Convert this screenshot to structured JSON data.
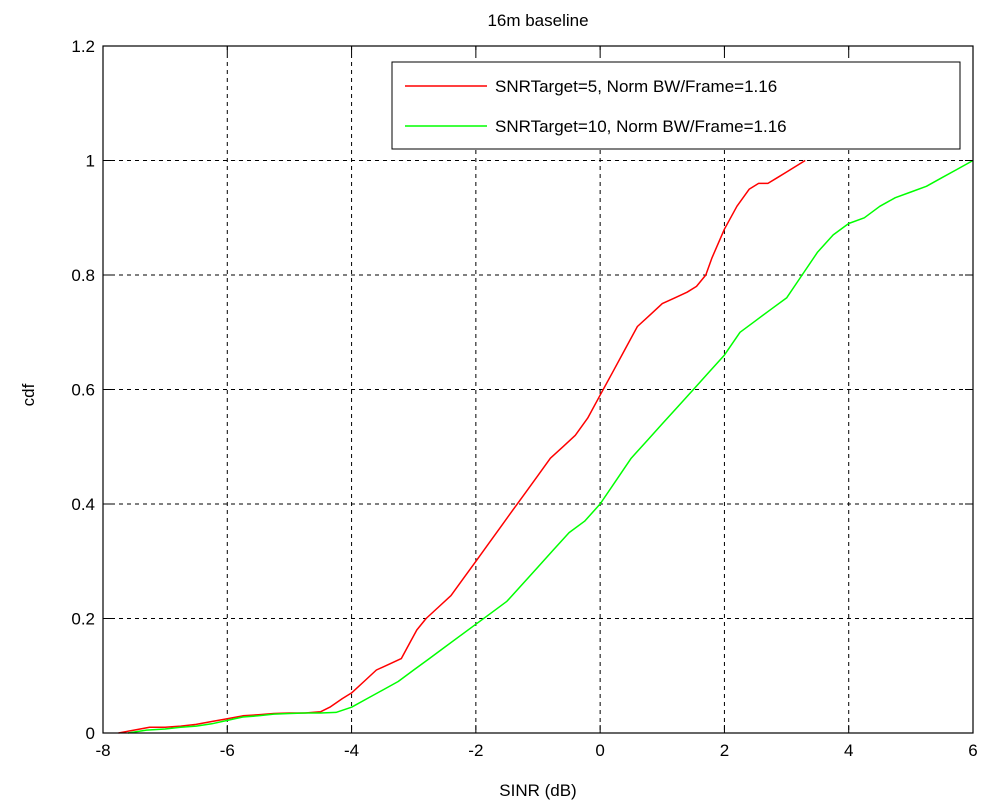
{
  "chart_data": {
    "type": "line",
    "title": "16m baseline",
    "xlabel": "SINR (dB)",
    "ylabel": "cdf",
    "xlim": [
      -8,
      6
    ],
    "ylim": [
      0,
      1.2
    ],
    "xticks": [
      -8,
      -6,
      -4,
      -2,
      0,
      2,
      4,
      6
    ],
    "yticks": [
      0,
      0.2,
      0.4,
      0.6,
      0.8,
      1,
      1.2
    ],
    "xtick_labels": [
      "-8",
      "-6",
      "-4",
      "-2",
      "0",
      "2",
      "4",
      "6"
    ],
    "ytick_labels": [
      "0",
      "0.2",
      "0.4",
      "0.6",
      "0.8",
      "1",
      "1.2"
    ],
    "grid": true,
    "legend_position": "top-right",
    "series": [
      {
        "name": "SNRTarget=5, Norm BW/Frame=1.16",
        "color": "#ff0000",
        "x": [
          -7.75,
          -7.5,
          -7.25,
          -7.0,
          -6.75,
          -6.5,
          -6.25,
          -6.0,
          -5.75,
          -5.5,
          -5.25,
          -5.0,
          -4.75,
          -4.5,
          -4.35,
          -4.15,
          -4.0,
          -3.8,
          -3.6,
          -3.4,
          -3.2,
          -3.05,
          -2.95,
          -2.8,
          -2.6,
          -2.4,
          -2.2,
          -2.0,
          -1.8,
          -1.6,
          -1.4,
          -1.2,
          -1.0,
          -0.8,
          -0.6,
          -0.4,
          -0.2,
          0.0,
          0.2,
          0.4,
          0.6,
          0.8,
          1.0,
          1.2,
          1.4,
          1.55,
          1.7,
          1.8,
          2.0,
          2.2,
          2.4,
          2.55,
          2.7,
          2.85,
          3.0,
          3.15,
          3.3
        ],
        "y": [
          0.0,
          0.005,
          0.01,
          0.01,
          0.012,
          0.015,
          0.02,
          0.025,
          0.03,
          0.032,
          0.034,
          0.035,
          0.035,
          0.037,
          0.045,
          0.06,
          0.07,
          0.09,
          0.11,
          0.12,
          0.13,
          0.16,
          0.18,
          0.2,
          0.22,
          0.24,
          0.27,
          0.3,
          0.33,
          0.36,
          0.39,
          0.42,
          0.45,
          0.48,
          0.5,
          0.52,
          0.55,
          0.59,
          0.63,
          0.67,
          0.71,
          0.73,
          0.75,
          0.76,
          0.77,
          0.78,
          0.8,
          0.83,
          0.88,
          0.92,
          0.95,
          0.96,
          0.96,
          0.97,
          0.98,
          0.99,
          1.0
        ]
      },
      {
        "name": "SNRTarget=10, Norm BW/Frame=1.16",
        "color": "#00ff00",
        "x": [
          -7.6,
          -7.3,
          -7.0,
          -6.75,
          -6.5,
          -6.25,
          -6.0,
          -5.75,
          -5.5,
          -5.25,
          -5.0,
          -4.75,
          -4.5,
          -4.25,
          -4.0,
          -3.75,
          -3.5,
          -3.25,
          -3.0,
          -2.75,
          -2.5,
          -2.25,
          -2.0,
          -1.75,
          -1.5,
          -1.25,
          -1.0,
          -0.75,
          -0.5,
          -0.25,
          0.0,
          0.25,
          0.5,
          0.75,
          1.0,
          1.25,
          1.5,
          1.75,
          2.0,
          2.25,
          2.5,
          2.75,
          3.0,
          3.25,
          3.5,
          3.75,
          4.0,
          4.25,
          4.5,
          4.75,
          5.0,
          5.25,
          5.5,
          5.75,
          6.0
        ],
        "y": [
          0.0,
          0.005,
          0.007,
          0.01,
          0.012,
          0.016,
          0.022,
          0.028,
          0.03,
          0.033,
          0.034,
          0.035,
          0.035,
          0.036,
          0.045,
          0.06,
          0.075,
          0.09,
          0.11,
          0.13,
          0.15,
          0.17,
          0.19,
          0.21,
          0.23,
          0.26,
          0.29,
          0.32,
          0.35,
          0.37,
          0.4,
          0.44,
          0.48,
          0.51,
          0.54,
          0.57,
          0.6,
          0.63,
          0.66,
          0.7,
          0.72,
          0.74,
          0.76,
          0.8,
          0.84,
          0.87,
          0.89,
          0.9,
          0.92,
          0.935,
          0.945,
          0.955,
          0.97,
          0.985,
          1.0
        ]
      }
    ]
  }
}
